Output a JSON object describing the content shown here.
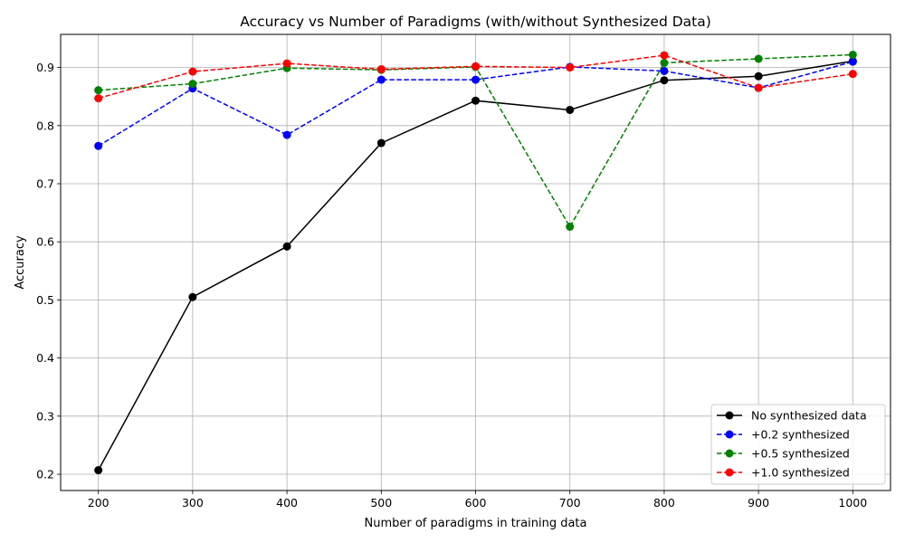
{
  "chart_data": {
    "type": "line",
    "title": "Accuracy vs Number of Paradigms (with/without Synthesized Data)",
    "xlabel": "Number of paradigms in training data",
    "ylabel": "Accuracy",
    "x": [
      200,
      300,
      400,
      500,
      600,
      700,
      800,
      900,
      1000
    ],
    "x_ticks": [
      "200",
      "300",
      "400",
      "500",
      "600",
      "700",
      "800",
      "900",
      "1000"
    ],
    "y_ticks": [
      "0.2",
      "0.3",
      "0.4",
      "0.5",
      "0.6",
      "0.7",
      "0.8",
      "0.9"
    ],
    "xlim": [
      160,
      1040
    ],
    "ylim": [
      0.172,
      0.957
    ],
    "grid": true,
    "legend_position": "bottom-right",
    "series": [
      {
        "name": "No synthesized data",
        "color": "#000000",
        "dash": "solid",
        "values": [
          0.207,
          0.505,
          0.592,
          0.77,
          0.843,
          0.827,
          0.878,
          0.885,
          0.911
        ]
      },
      {
        "name": "+0.2 synthesized",
        "color": "#0000ff",
        "dash": "dashed",
        "values": [
          0.765,
          0.864,
          0.784,
          0.879,
          0.879,
          0.901,
          0.894,
          0.865,
          0.91
        ]
      },
      {
        "name": "+0.5 synthesized",
        "color": "#008000",
        "dash": "dashed",
        "values": [
          0.861,
          0.872,
          0.899,
          0.896,
          0.901,
          0.626,
          0.908,
          0.915,
          0.922
        ]
      },
      {
        "name": "+1.0 synthesized",
        "color": "#ff0000",
        "dash": "dashed",
        "values": [
          0.847,
          0.893,
          0.907,
          0.897,
          0.902,
          0.9,
          0.921,
          0.865,
          0.889
        ]
      }
    ]
  }
}
